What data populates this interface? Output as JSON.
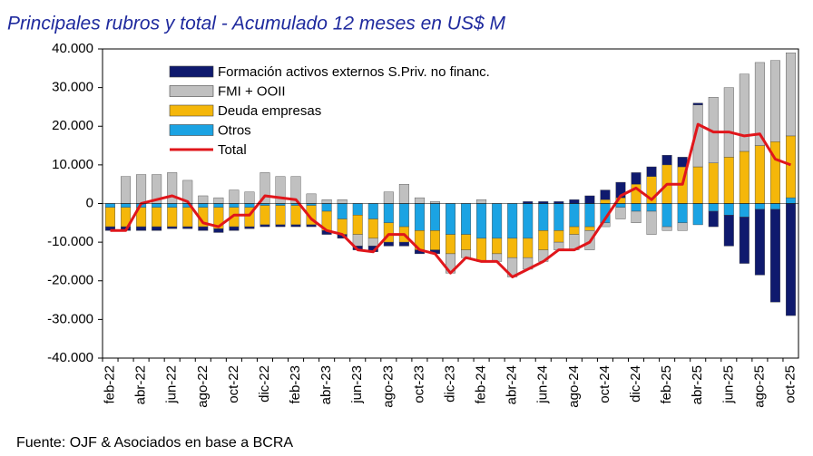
{
  "chart_data": {
    "type": "bar",
    "stacked": true,
    "title": "Principales rubros y total - Acumulado 12 meses en US$ M",
    "source": "Fuente: OJF & Asociados en base a BCRA",
    "categories": [
      "feb-22",
      null,
      "abr-22",
      null,
      "jun-22",
      null,
      "ago-22",
      null,
      "oct-22",
      null,
      "dic-22",
      null,
      "feb-23",
      null,
      "abr-23",
      null,
      "jun-23",
      null,
      "ago-23",
      null,
      "oct-23",
      null,
      "dic-23",
      null,
      "feb-24",
      null,
      "abr-24",
      null,
      "jun-24",
      null,
      "ago-24",
      null,
      "oct-24",
      null,
      "dic-24",
      null,
      "feb-25",
      null,
      "abr-25",
      null,
      "jun-25",
      null,
      "ago-25",
      null,
      "oct-25"
    ],
    "series": [
      {
        "name": "Formación activos externos S.Priv. no financ.",
        "type": "bar",
        "color": "#0f1a6e",
        "values": [
          -1000,
          -1000,
          -1000,
          -1000,
          -500,
          -500,
          -1000,
          -1000,
          -1000,
          -500,
          -500,
          -500,
          -500,
          -500,
          -1000,
          -1000,
          -1000,
          -1500,
          -1000,
          -1000,
          -1000,
          -1000,
          0,
          0,
          0,
          0,
          0,
          500,
          500,
          500,
          1000,
          2000,
          2500,
          4000,
          3000,
          2500,
          2500,
          2500,
          500,
          -4000,
          -8000,
          -12000,
          -17000,
          -24000,
          -29000
        ]
      },
      {
        "name": "FMI + OOII",
        "type": "bar",
        "color": "#c0c0c0",
        "values": [
          0,
          7000,
          7500,
          7500,
          8000,
          6000,
          2000,
          1500,
          3500,
          3000,
          8000,
          7000,
          7000,
          2500,
          1000,
          1000,
          -3000,
          -2000,
          3000,
          5000,
          1500,
          500,
          -5000,
          -2000,
          1000,
          -2000,
          -5000,
          -3000,
          -3000,
          -2000,
          -4000,
          -5000,
          -1000,
          -3000,
          -3000,
          -6000,
          -1000,
          -2000,
          16000,
          17000,
          18000,
          20000,
          21500,
          21000,
          21500
        ]
      },
      {
        "name": "Deuda empresas",
        "type": "bar",
        "color": "#f5b70a",
        "values": [
          -5000,
          -5000,
          -5000,
          -5000,
          -5000,
          -5000,
          -5000,
          -5500,
          -5000,
          -5000,
          -5000,
          -5000,
          -5000,
          -5000,
          -5000,
          -4000,
          -5000,
          -5000,
          -5000,
          -4000,
          -5000,
          -5000,
          -5000,
          -4000,
          -6000,
          -4000,
          -5000,
          -5000,
          -5000,
          -3000,
          -2000,
          -1000,
          1000,
          1500,
          5000,
          7000,
          10000,
          9500,
          9500,
          10500,
          12000,
          13500,
          15000,
          16000,
          16000
        ]
      },
      {
        "name": "Otros",
        "type": "bar",
        "color": "#1ba3e3",
        "values": [
          -1000,
          -1000,
          -1000,
          -1000,
          -1000,
          -1000,
          -1000,
          -1000,
          -1000,
          -1000,
          -500,
          -500,
          -500,
          -500,
          -2000,
          -4000,
          -3000,
          -4000,
          -5000,
          -6000,
          -7000,
          -7000,
          -8000,
          -8000,
          -9000,
          -9000,
          -9000,
          -9000,
          -7000,
          -7000,
          -6000,
          -6000,
          -5000,
          -1000,
          -2000,
          -2000,
          -6000,
          -5000,
          -5500,
          -2000,
          -3000,
          -3500,
          -1500,
          -1500,
          1500
        ]
      },
      {
        "name": "Total",
        "type": "line",
        "color": "#e0161b",
        "values": [
          -7000,
          -7000,
          0,
          1000,
          2000,
          500,
          -5000,
          -6000,
          -3000,
          -3000,
          2000,
          1500,
          1000,
          -4000,
          -7000,
          -8000,
          -12000,
          -12500,
          -8000,
          -8000,
          -12000,
          -13000,
          -18000,
          -14000,
          -15000,
          -15000,
          -19000,
          -17000,
          -15000,
          -12000,
          -12000,
          -10000,
          -4000,
          2000,
          4000,
          1000,
          5000,
          5000,
          20500,
          18500,
          18500,
          17500,
          18000,
          11500,
          10000
        ]
      }
    ],
    "ylim": [
      -40000,
      40000
    ],
    "yticks": [
      {
        "value": -40000,
        "label": "-40.000"
      },
      {
        "value": -30000,
        "label": "-30.000"
      },
      {
        "value": -20000,
        "label": "-20.000"
      },
      {
        "value": -10000,
        "label": "-10.000"
      },
      0,
      {
        "value": 10000,
        "label": "10.000"
      },
      {
        "value": 20000,
        "label": "20.000"
      },
      {
        "value": 30000,
        "label": "30.000"
      },
      {
        "value": 40000,
        "label": "40.000"
      }
    ],
    "grid": false,
    "legend": "upper left"
  }
}
